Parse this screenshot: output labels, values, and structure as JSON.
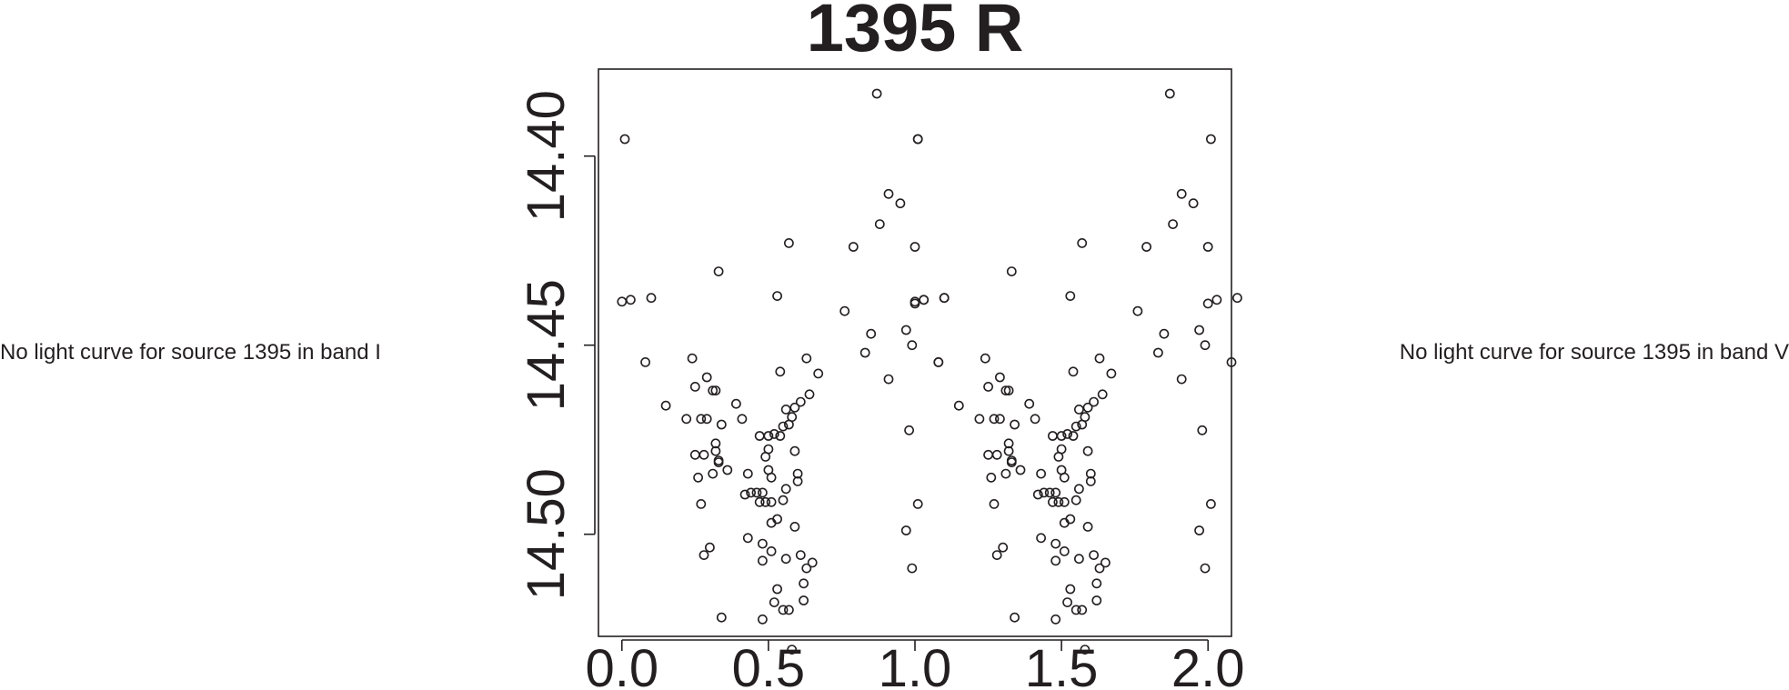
{
  "notes": {
    "left": "No light curve for source 1395 in band I",
    "right": "No light curve for source 1395 in band V"
  },
  "chart_data": {
    "type": "scatter",
    "title": "1395 R",
    "xlabel": "",
    "ylabel": "",
    "xlim": [
      -0.08,
      2.08
    ],
    "ylim": [
      14.527,
      14.377
    ],
    "y_inverted": true,
    "grid": false,
    "marker": "open-circle",
    "color": "#231f20",
    "x_ticks": [
      0.0,
      0.5,
      1.0,
      1.5,
      2.0
    ],
    "x_tick_labels": [
      "0.0",
      "0.5",
      "1.0",
      "1.5",
      "2.0"
    ],
    "y_ticks": [
      14.4,
      14.45,
      14.5
    ],
    "y_tick_labels": [
      "14.40",
      "14.45",
      "14.50"
    ],
    "points_half": [
      [
        0.0,
        14.4385
      ],
      [
        0.01,
        14.3955
      ],
      [
        0.03,
        14.438
      ],
      [
        0.08,
        14.4545
      ],
      [
        0.1,
        14.4375
      ],
      [
        0.15,
        14.466
      ],
      [
        0.22,
        14.4695
      ],
      [
        0.24,
        14.4535
      ],
      [
        0.25,
        14.479
      ],
      [
        0.25,
        14.461
      ],
      [
        0.26,
        14.485
      ],
      [
        0.27,
        14.492
      ],
      [
        0.27,
        14.4695
      ],
      [
        0.28,
        14.479
      ],
      [
        0.28,
        14.5055
      ],
      [
        0.29,
        14.4585
      ],
      [
        0.29,
        14.4695
      ],
      [
        0.3,
        14.5035
      ],
      [
        0.31,
        14.484
      ],
      [
        0.31,
        14.462
      ],
      [
        0.32,
        14.476
      ],
      [
        0.32,
        14.462
      ],
      [
        0.32,
        14.478
      ],
      [
        0.33,
        14.481
      ],
      [
        0.33,
        14.4805
      ],
      [
        0.33,
        14.4305
      ],
      [
        0.34,
        14.522
      ],
      [
        0.34,
        14.471
      ],
      [
        0.36,
        14.483
      ],
      [
        0.39,
        14.4655
      ],
      [
        0.41,
        14.4695
      ],
      [
        0.42,
        14.4895
      ],
      [
        0.43,
        14.501
      ],
      [
        0.43,
        14.484
      ],
      [
        0.44,
        14.489
      ],
      [
        0.46,
        14.489
      ],
      [
        0.47,
        14.474
      ],
      [
        0.47,
        14.4915
      ],
      [
        0.48,
        14.5225
      ],
      [
        0.48,
        14.507
      ],
      [
        0.48,
        14.489
      ],
      [
        0.48,
        14.5025
      ],
      [
        0.49,
        14.4795
      ],
      [
        0.49,
        14.4915
      ],
      [
        0.5,
        14.474
      ],
      [
        0.5,
        14.483
      ],
      [
        0.5,
        14.4775
      ],
      [
        0.51,
        14.497
      ],
      [
        0.51,
        14.5045
      ],
      [
        0.51,
        14.485
      ],
      [
        0.51,
        14.4915
      ],
      [
        0.52,
        14.4735
      ],
      [
        0.52,
        14.518
      ],
      [
        0.53,
        14.5145
      ],
      [
        0.53,
        14.496
      ],
      [
        0.53,
        14.437
      ],
      [
        0.54,
        14.474
      ],
      [
        0.54,
        14.457
      ],
      [
        0.55,
        14.4715
      ],
      [
        0.55,
        14.491
      ],
      [
        0.55,
        14.52
      ],
      [
        0.56,
        14.5065
      ],
      [
        0.56,
        14.467
      ],
      [
        0.56,
        14.488
      ],
      [
        0.57,
        14.52
      ],
      [
        0.57,
        14.471
      ],
      [
        0.57,
        14.423
      ],
      [
        0.58,
        14.469
      ],
      [
        0.58,
        14.5305
      ],
      [
        0.59,
        14.498
      ],
      [
        0.59,
        14.4665
      ],
      [
        0.59,
        14.478
      ],
      [
        0.6,
        14.484
      ],
      [
        0.6,
        14.486
      ],
      [
        0.61,
        14.465
      ],
      [
        0.61,
        14.5055
      ],
      [
        0.62,
        14.513
      ],
      [
        0.62,
        14.5175
      ],
      [
        0.63,
        14.4535
      ],
      [
        0.63,
        14.509
      ],
      [
        0.64,
        14.463
      ],
      [
        0.65,
        14.5075
      ],
      [
        0.67,
        14.4575
      ],
      [
        0.76,
        14.441
      ],
      [
        0.79,
        14.424
      ],
      [
        0.83,
        14.452
      ],
      [
        0.85,
        14.447
      ],
      [
        0.87,
        14.3835
      ],
      [
        0.88,
        14.418
      ],
      [
        0.91,
        14.459
      ],
      [
        0.91,
        14.41
      ],
      [
        0.95,
        14.4125
      ],
      [
        0.97,
        14.446
      ],
      [
        0.97,
        14.499
      ],
      [
        0.98,
        14.4725
      ],
      [
        0.99,
        14.45
      ],
      [
        0.99,
        14.509
      ],
      [
        1.0,
        14.424
      ],
      [
        1.0,
        14.439
      ],
      [
        1.01,
        14.3955
      ],
      [
        1.01,
        14.492
      ],
      [
        1.03,
        14.438
      ],
      [
        1.08,
        14.4545
      ],
      [
        1.1,
        14.4375
      ]
    ],
    "phase_shift": 1.0,
    "note": "Points repeat at phase + 1.0 (phase-folded light curve, two cycles shown)"
  }
}
